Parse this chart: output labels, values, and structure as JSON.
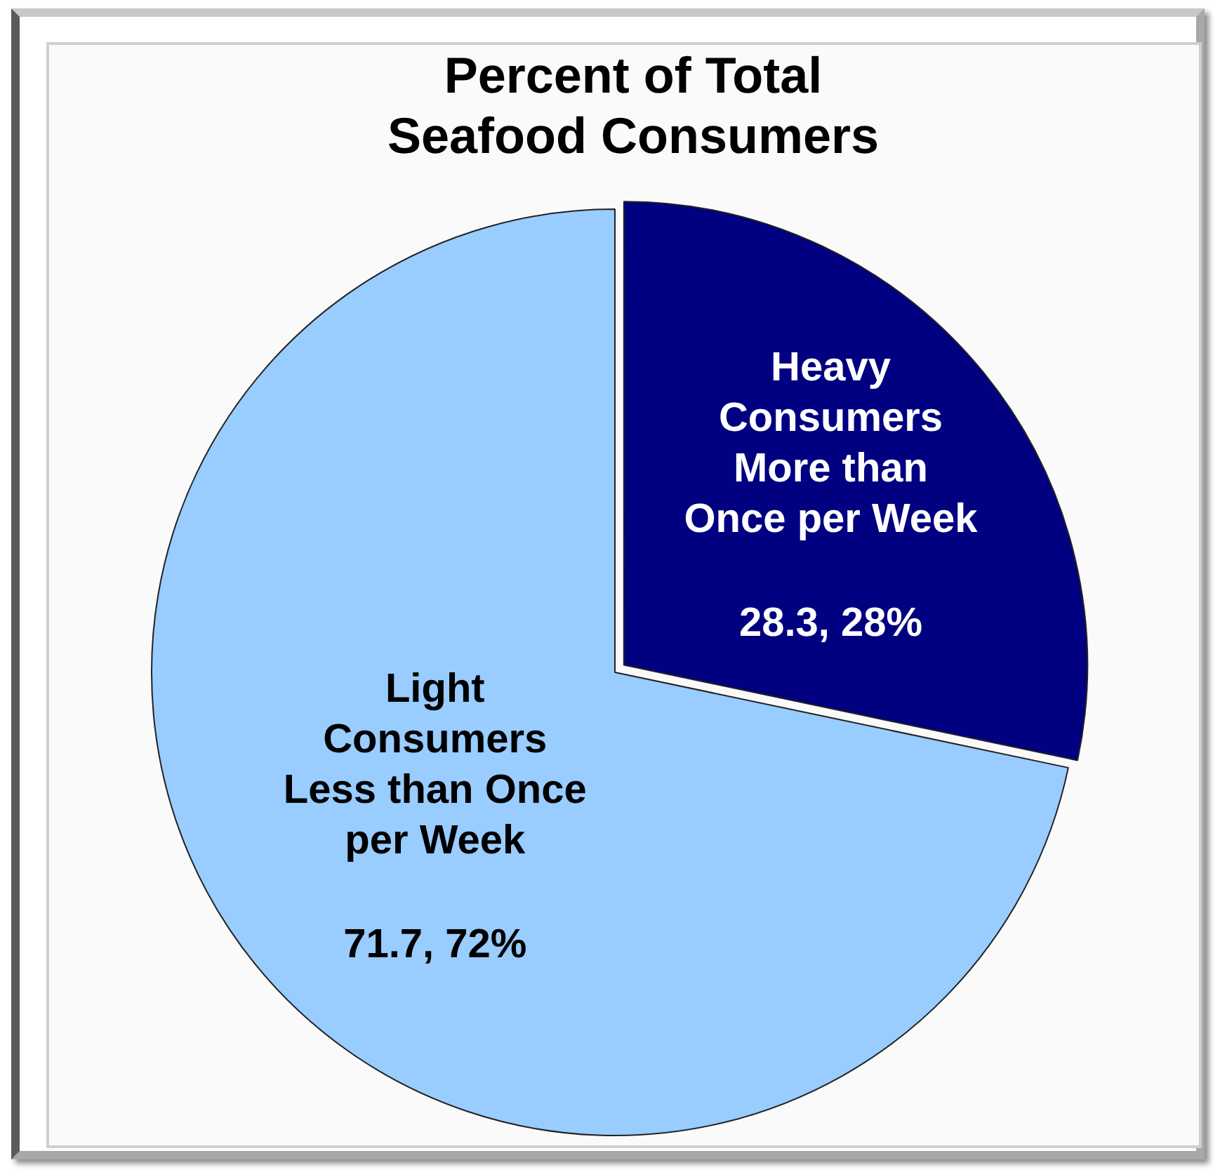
{
  "chart_data": {
    "type": "pie",
    "title": "Percent of Total\nSeafood Consumers",
    "categories": [
      "Heavy\nConsumers\nMore than\nOnce per Week",
      "Light\nConsumers\nLess than Once\nper Week"
    ],
    "values": [
      28.3,
      71.7
    ],
    "colors": [
      "#000080",
      "#99ccff"
    ],
    "value_labels": [
      "28.3, 28%",
      "71.7, 72%"
    ]
  }
}
